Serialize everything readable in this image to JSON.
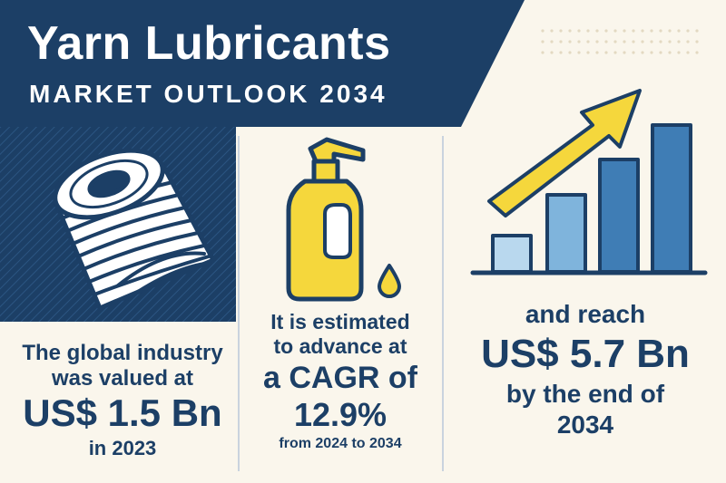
{
  "header": {
    "title": "Yarn Lubricants",
    "subtitle": "MARKET OUTLOOK 2034"
  },
  "stat_2023": {
    "line1": "The global industry",
    "line2": "was valued at",
    "value": "US$ 1.5 Bn",
    "line3": "in 2023"
  },
  "stat_cagr": {
    "line1": "It is estimated",
    "line2": "to advance at",
    "line3": "a CAGR of",
    "value": "12.9%",
    "line4": "from 2024 to 2034"
  },
  "stat_2034": {
    "line1": "and reach",
    "value": "US$ 5.7 Bn",
    "line2": "by the end of",
    "line3": "2034"
  },
  "icons": [
    "yarn-spool-icon",
    "lubricant-bottle-icon",
    "oil-drop-icon",
    "growth-chart-icon",
    "growth-arrow-icon"
  ],
  "colors": {
    "navy": "#1c3f66",
    "background": "#faf6ec",
    "yellow": "#f5d73c",
    "bar_light": "#b9d8ee",
    "bar_mid": "#7fb4dc",
    "bar_dark": "#3f7db5"
  }
}
